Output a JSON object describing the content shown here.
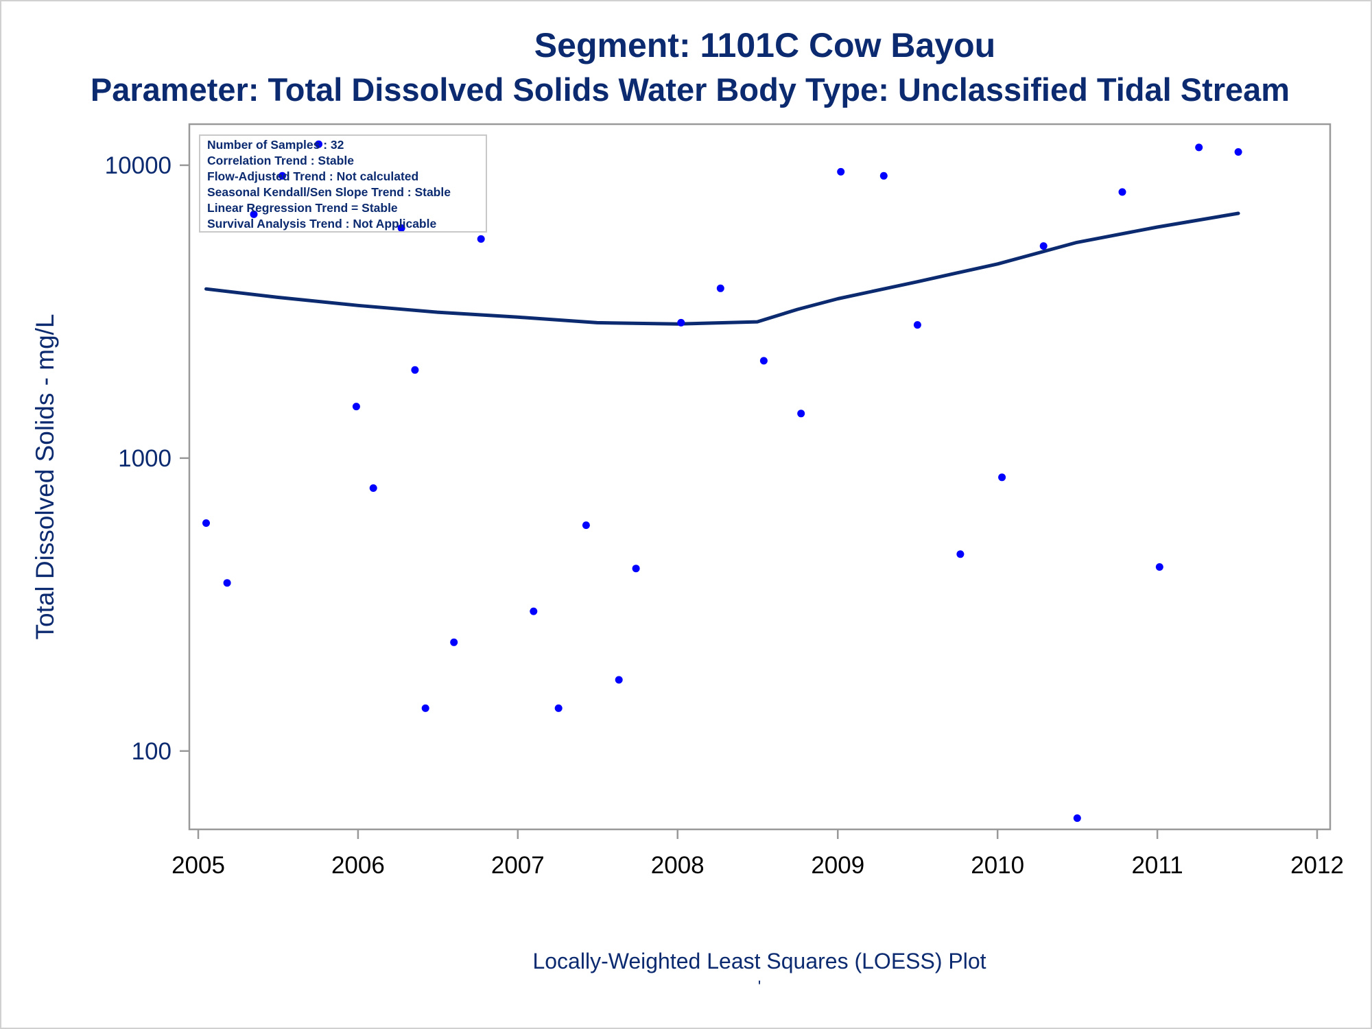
{
  "colors": {
    "title": "#0b2a6f",
    "points": "#0000ff",
    "loess": "#0b2a6f",
    "frame": "#999999"
  },
  "chart_data": {
    "type": "scatter",
    "title": "Segment: 1101C  Cow Bayou",
    "subtitle": "Parameter: Total Dissolved Solids   Water Body Type: Unclassified Tidal Stream",
    "xlabel": "Locally-Weighted Least Squares (LOESS) Plot",
    "footnote": "'",
    "ylabel": "Total Dissolved Solids - mg/L",
    "x_scale": "date",
    "y_scale": "log",
    "xlim": [
      "2005-01-01",
      "2012-01-01"
    ],
    "ylim": [
      57,
      12600
    ],
    "xticks": [
      "2005",
      "2006",
      "2007",
      "2008",
      "2009",
      "2010",
      "2011",
      "2012"
    ],
    "yticks": [
      100,
      1000,
      10000
    ],
    "ytick_labels": [
      "100",
      "1000",
      "10000"
    ],
    "grid": false,
    "stats_box": {
      "lines": [
        "Number of Samples : 32",
        "Correlation Trend : Stable",
        "Flow-Adjusted Trend : Not calculated",
        "Seasonal Kendall/Sen Slope Trend : Stable",
        "Linear Regression Trend = Stable",
        "Survival Analysis Trend : Not Applicable"
      ],
      "placement": "top-left"
    },
    "points": [
      {
        "x": "2005-01-19",
        "y": 600
      },
      {
        "x": "2005-03-08",
        "y": 375
      },
      {
        "x": "2005-05-08",
        "y": 6800
      },
      {
        "x": "2005-07-12",
        "y": 9200
      },
      {
        "x": "2005-10-03",
        "y": 11800
      },
      {
        "x": "2005-12-28",
        "y": 1500
      },
      {
        "x": "2006-02-05",
        "y": 790
      },
      {
        "x": "2006-04-10",
        "y": 6100
      },
      {
        "x": "2006-05-11",
        "y": 2000
      },
      {
        "x": "2006-06-04",
        "y": 140
      },
      {
        "x": "2006-08-08",
        "y": 235
      },
      {
        "x": "2006-10-09",
        "y": 5600
      },
      {
        "x": "2007-02-06",
        "y": 300
      },
      {
        "x": "2007-04-04",
        "y": 140
      },
      {
        "x": "2007-06-06",
        "y": 590
      },
      {
        "x": "2007-08-20",
        "y": 175
      },
      {
        "x": "2007-09-28",
        "y": 420
      },
      {
        "x": "2008-01-09",
        "y": 2900
      },
      {
        "x": "2008-04-08",
        "y": 3800
      },
      {
        "x": "2008-07-16",
        "y": 2150
      },
      {
        "x": "2008-10-09",
        "y": 1420
      },
      {
        "x": "2009-01-08",
        "y": 9500
      },
      {
        "x": "2009-04-16",
        "y": 9200
      },
      {
        "x": "2009-07-02",
        "y": 2850
      },
      {
        "x": "2009-10-08",
        "y": 470
      },
      {
        "x": "2010-01-11",
        "y": 860
      },
      {
        "x": "2010-04-16",
        "y": 5300
      },
      {
        "x": "2010-07-02",
        "y": 59
      },
      {
        "x": "2010-10-13",
        "y": 8100
      },
      {
        "x": "2011-01-06",
        "y": 425
      },
      {
        "x": "2011-04-06",
        "y": 11500
      },
      {
        "x": "2011-07-05",
        "y": 11100
      }
    ],
    "loess_line": [
      {
        "x": "2005-01-19",
        "y": 3780
      },
      {
        "x": "2005-07-01",
        "y": 3540
      },
      {
        "x": "2006-01-01",
        "y": 3320
      },
      {
        "x": "2006-07-01",
        "y": 3150
      },
      {
        "x": "2007-01-01",
        "y": 3030
      },
      {
        "x": "2007-07-01",
        "y": 2900
      },
      {
        "x": "2008-01-01",
        "y": 2870
      },
      {
        "x": "2008-07-01",
        "y": 2920
      },
      {
        "x": "2008-10-01",
        "y": 3220
      },
      {
        "x": "2009-01-01",
        "y": 3500
      },
      {
        "x": "2009-07-01",
        "y": 4000
      },
      {
        "x": "2010-01-01",
        "y": 4600
      },
      {
        "x": "2010-07-01",
        "y": 5450
      },
      {
        "x": "2011-01-01",
        "y": 6150
      },
      {
        "x": "2011-07-05",
        "y": 6850
      }
    ]
  }
}
